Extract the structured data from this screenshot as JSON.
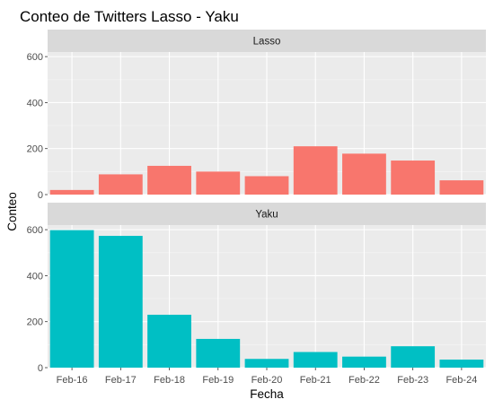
{
  "chart_data": {
    "type": "bar",
    "title": "Conteo de Twitters Lasso - Yaku",
    "xlabel": "Fecha",
    "ylabel": "Conteo",
    "categories": [
      "Feb-16",
      "Feb-17",
      "Feb-18",
      "Feb-19",
      "Feb-20",
      "Feb-21",
      "Feb-22",
      "Feb-23",
      "Feb-24"
    ],
    "ylim": [
      0,
      620
    ],
    "yticks": [
      0,
      200,
      400,
      600
    ],
    "grid": true,
    "legend": "none",
    "panels": [
      {
        "name": "Lasso",
        "color": "#F8766D",
        "values": [
          20,
          88,
          125,
          100,
          80,
          210,
          178,
          148,
          62
        ]
      },
      {
        "name": "Yaku",
        "color": "#00BFC4",
        "values": [
          598,
          573,
          230,
          125,
          38,
          68,
          48,
          93,
          35
        ]
      }
    ]
  },
  "colors": {
    "panel_background": "#EBEBEB",
    "strip_background": "#D9D9D9",
    "grid_major": "#FFFFFF",
    "grid_minor": "#F5F5F5"
  }
}
